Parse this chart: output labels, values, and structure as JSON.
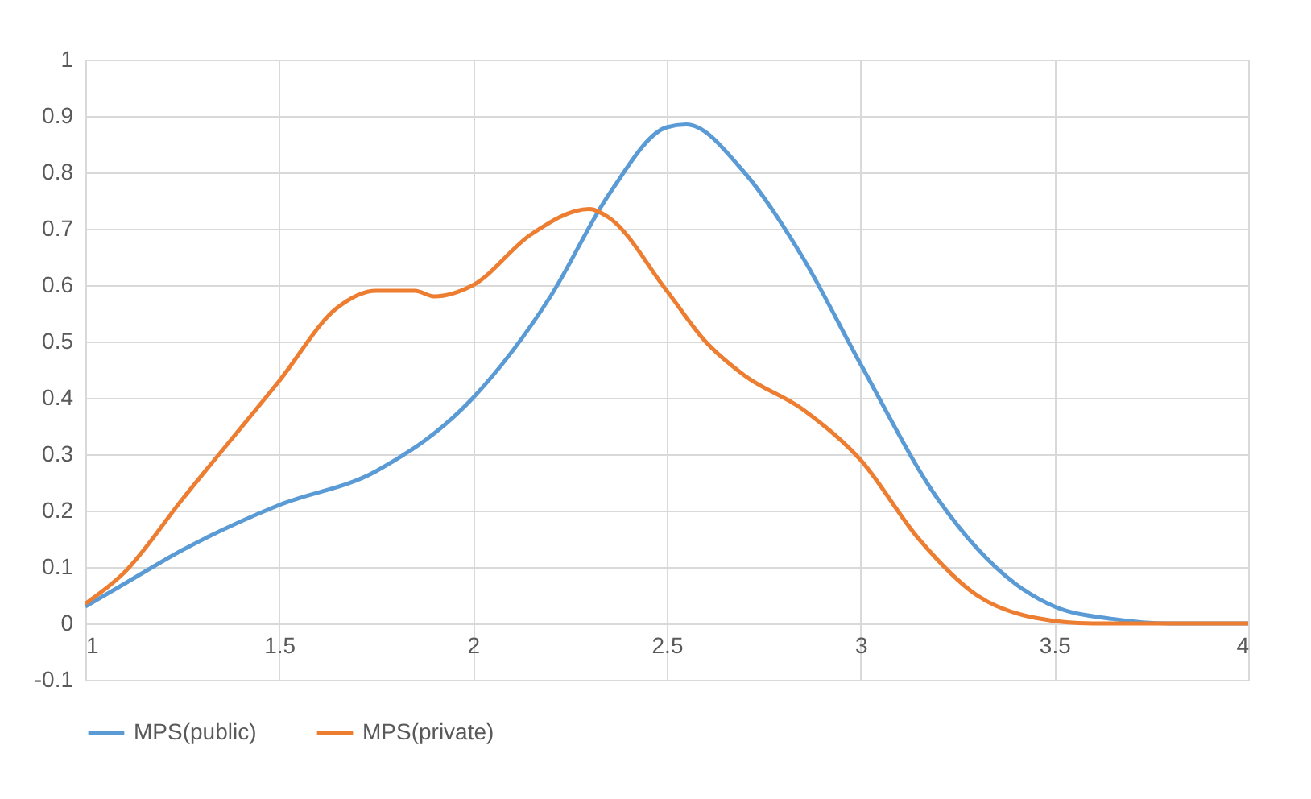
{
  "chart_data": {
    "type": "line",
    "xlim": [
      1,
      4
    ],
    "xticks": [
      1,
      1.5,
      2,
      2.5,
      3,
      3.5,
      4
    ],
    "ylim": [
      -0.1,
      1
    ],
    "yticks": [
      -0.1,
      0,
      0.1,
      0.2,
      0.3,
      0.4,
      0.5,
      0.6,
      0.7,
      0.8,
      0.9,
      1
    ],
    "grid": true,
    "legend": "bottom",
    "marker": "none",
    "line_style": "solid",
    "series": [
      {
        "name": "MPS(public)",
        "color": "#5b9bd5",
        "x": [
          1,
          1.1,
          1.25,
          1.5,
          1.75,
          2,
          2.2,
          2.35,
          2.5,
          2.55,
          2.7,
          2.85,
          3,
          3.2,
          3.4,
          3.5,
          3.65,
          3.8,
          4
        ],
        "values": [
          0.03,
          0.07,
          0.13,
          0.21,
          0.27,
          0.4,
          0.58,
          0.76,
          0.88,
          0.885,
          0.8,
          0.65,
          0.46,
          0.22,
          0.07,
          0.03,
          0.008,
          0,
          0
        ]
      },
      {
        "name": "MPS(private)",
        "color": "#ed7d31",
        "x": [
          1,
          1.1,
          1.25,
          1.5,
          1.65,
          1.75,
          1.85,
          1.9,
          2,
          2.15,
          2.3,
          2.35,
          2.5,
          2.6,
          2.7,
          2.85,
          3,
          3.15,
          3.3,
          3.45,
          3.6,
          4
        ],
        "values": [
          0.035,
          0.09,
          0.22,
          0.43,
          0.56,
          0.59,
          0.59,
          0.58,
          0.6,
          0.69,
          0.735,
          0.72,
          0.59,
          0.5,
          0.44,
          0.38,
          0.29,
          0.15,
          0.05,
          0.01,
          0,
          0
        ]
      }
    ]
  }
}
